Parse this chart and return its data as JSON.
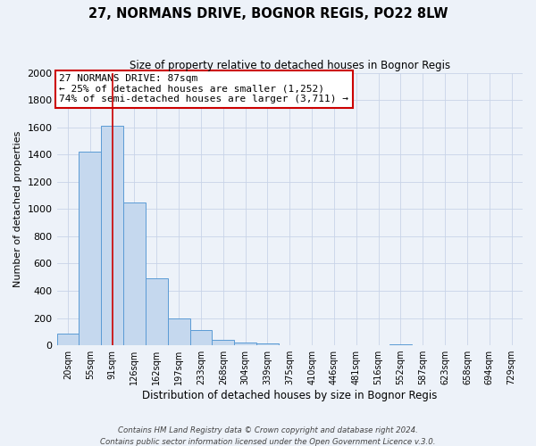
{
  "title": "27, NORMANS DRIVE, BOGNOR REGIS, PO22 8LW",
  "subtitle": "Size of property relative to detached houses in Bognor Regis",
  "xlabel": "Distribution of detached houses by size in Bognor Regis",
  "ylabel": "Number of detached properties",
  "bar_color": "#c5d8ee",
  "bar_edge_color": "#5b9bd5",
  "background_color": "#edf2f9",
  "bin_labels": [
    "20sqm",
    "55sqm",
    "91sqm",
    "126sqm",
    "162sqm",
    "197sqm",
    "233sqm",
    "268sqm",
    "304sqm",
    "339sqm",
    "375sqm",
    "410sqm",
    "446sqm",
    "481sqm",
    "516sqm",
    "552sqm",
    "587sqm",
    "623sqm",
    "658sqm",
    "694sqm",
    "729sqm"
  ],
  "bin_values": [
    85,
    1420,
    1610,
    1050,
    490,
    200,
    110,
    40,
    20,
    15,
    0,
    0,
    0,
    0,
    0,
    10,
    0,
    0,
    0,
    0,
    0
  ],
  "ylim": [
    0,
    2000
  ],
  "yticks": [
    0,
    200,
    400,
    600,
    800,
    1000,
    1200,
    1400,
    1600,
    1800,
    2000
  ],
  "vline_x_index": 2,
  "vline_color": "#cc0000",
  "annotation_title": "27 NORMANS DRIVE: 87sqm",
  "annotation_line1": "← 25% of detached houses are smaller (1,252)",
  "annotation_line2": "74% of semi-detached houses are larger (3,711) →",
  "annotation_box_color": "#ffffff",
  "annotation_box_edge": "#cc0000",
  "footer1": "Contains HM Land Registry data © Crown copyright and database right 2024.",
  "footer2": "Contains public sector information licensed under the Open Government Licence v.3.0."
}
